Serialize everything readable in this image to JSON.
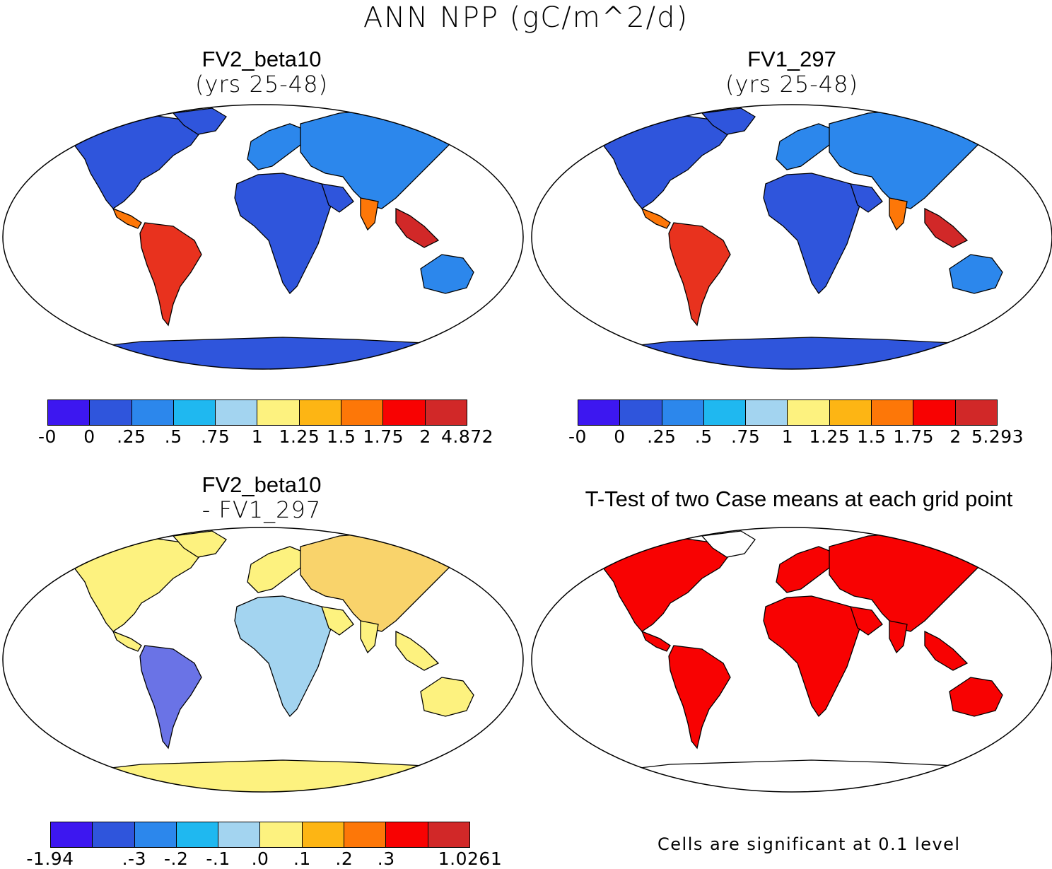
{
  "title": "ANN NPP (gC/m^2/d)",
  "panels": [
    {
      "id": "p1",
      "title": "FV2_beta10",
      "subtitle": "(yrs 25-48)",
      "colorbar": {
        "colors": [
          "#3d17f0",
          "#2f55dc",
          "#2c87ec",
          "#1fb8f0",
          "#a3d4f0",
          "#fdf27f",
          "#fdb514",
          "#fd7708",
          "#f80202",
          "#d12828"
        ],
        "ticks": [
          "-0",
          "0",
          ".25",
          ".5",
          ".75",
          "1",
          "1.25",
          "1.5",
          "1.75",
          "2",
          "4.872"
        ]
      }
    },
    {
      "id": "p2",
      "title": "FV1_297",
      "subtitle": "(yrs 25-48)",
      "colorbar": {
        "colors": [
          "#3d17f0",
          "#2f55dc",
          "#2c87ec",
          "#1fb8f0",
          "#a3d4f0",
          "#fdf27f",
          "#fdb514",
          "#fd7708",
          "#f80202",
          "#d12828"
        ],
        "ticks": [
          "-0",
          "0",
          ".25",
          ".5",
          ".75",
          "1",
          "1.25",
          "1.5",
          "1.75",
          "2",
          "5.293"
        ]
      }
    },
    {
      "id": "p3",
      "title": "FV2_beta10",
      "subtitle": "- FV1_297",
      "colorbar": {
        "colors": [
          "#3d17f0",
          "#2f55dc",
          "#2c87ec",
          "#1fb8f0",
          "#a3d4f0",
          "#fdf27f",
          "#fdb514",
          "#fd7708",
          "#f80202",
          "#d12828"
        ],
        "ticks": [
          "-1.94",
          "",
          ".-3",
          "-.2",
          "-.1",
          ".0",
          ".1",
          ".2",
          ".3",
          "",
          "1.0261"
        ]
      }
    },
    {
      "id": "p4",
      "title": "T-Test of two Case means at each grid point",
      "subtitle": "",
      "note": "Cells are significant at 0.1 level"
    }
  ]
}
